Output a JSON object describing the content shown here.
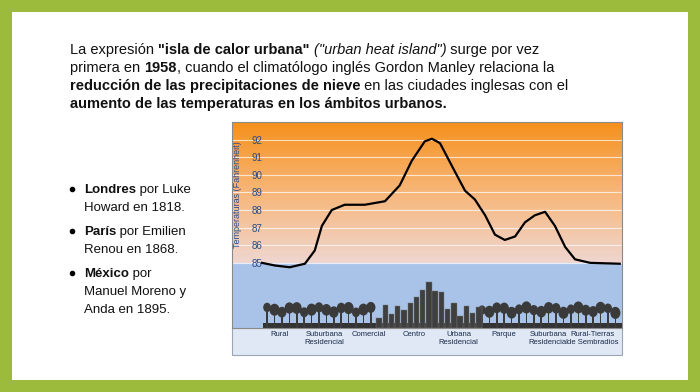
{
  "intro": {
    "lines": [
      [
        {
          "text": "La expresión "
        },
        {
          "text": "\"isla de calor urbana\"",
          "bold": true
        },
        {
          "text": " "
        },
        {
          "text": "(\"urban heat island\")",
          "italic": true
        },
        {
          "text": " surge por vez"
        }
      ],
      [
        {
          "text": "primera en "
        },
        {
          "text": "1958",
          "bold": true
        },
        {
          "text": ", cuando el climatólogo inglés Gordon Manley relaciona la"
        }
      ],
      [
        {
          "text": "reducción de las precipitaciones de nieve",
          "bold": true
        },
        {
          "text": " en las ciudades inglesas con el"
        }
      ],
      [
        {
          "text": "aumento de las temperaturas en los ámbitos urbanos.",
          "bold": true
        }
      ]
    ]
  },
  "bullets": [
    {
      "lines": [
        [
          {
            "text": "Londres",
            "bold": true
          },
          {
            "text": " por Luke"
          }
        ],
        [
          {
            "text": "Howard en 1818."
          }
        ]
      ]
    },
    {
      "lines": [
        [
          {
            "text": "París",
            "bold": true
          },
          {
            "text": " por Emilien"
          }
        ],
        [
          {
            "text": "Renou en 1868."
          }
        ]
      ]
    },
    {
      "lines": [
        [
          {
            "text": "México",
            "bold": true
          },
          {
            "text": " por"
          }
        ],
        [
          {
            "text": "Manuel Moreno y"
          }
        ],
        [
          {
            "text": "Anda en 1895."
          }
        ]
      ]
    }
  ],
  "chart_data": {
    "type": "line",
    "ylabel": "Temperaturas (Fahrenheit)",
    "color": "#000000",
    "grid": true,
    "xlim": [
      -1.07,
      7.65
    ],
    "ylim": [
      81.3,
      93.0
    ],
    "yticks": [
      85,
      86,
      87,
      88,
      89,
      90,
      91,
      92
    ],
    "xticks": [
      {
        "value": 0,
        "label": "Rural"
      },
      {
        "value": 1,
        "label": "Suburbana Residencial"
      },
      {
        "value": 2,
        "label": "Comercial"
      },
      {
        "value": 3,
        "label": "Centro"
      },
      {
        "value": 4,
        "label": "Urbana Residencial"
      },
      {
        "value": 5,
        "label": "Parque"
      },
      {
        "value": 6,
        "label": "Suburbana Residencial"
      },
      {
        "value": 7,
        "label": "Rural-Tierras de Sembradios"
      }
    ],
    "x": [
      -0.4,
      -0.11,
      0.22,
      0.56,
      0.78,
      0.94,
      1.16,
      1.45,
      1.9,
      2.35,
      2.68,
      2.95,
      3.24,
      3.4,
      3.58,
      3.91,
      4.14,
      4.36,
      4.59,
      4.81,
      5.03,
      5.26,
      5.48,
      5.7,
      5.93,
      6.15,
      6.38,
      6.6,
      6.94,
      7.6
    ],
    "values": [
      85.0,
      84.85,
      84.75,
      84.95,
      85.7,
      87.1,
      88.0,
      88.3,
      88.3,
      88.5,
      89.4,
      90.8,
      91.9,
      92.05,
      91.8,
      90.2,
      89.1,
      88.6,
      87.7,
      86.6,
      86.3,
      86.5,
      87.3,
      87.7,
      87.9,
      87.1,
      85.9,
      85.2,
      85.0,
      84.95
    ]
  }
}
